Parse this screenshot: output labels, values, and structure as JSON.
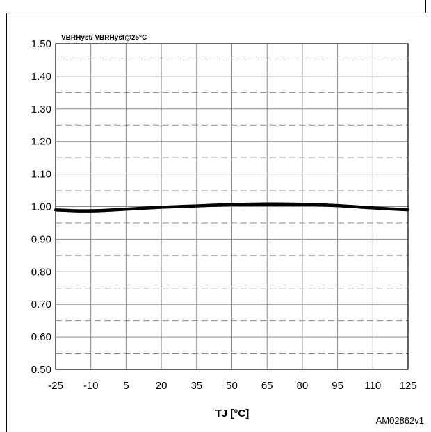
{
  "chart_data": {
    "type": "line",
    "title": "",
    "ylabel": "VBRHyst/ VBRHyst@25°C",
    "xlabel": "TJ [°C]",
    "figure_id": "AM02862v1",
    "x_ticks": [
      "-25",
      "-10",
      "5",
      "20",
      "35",
      "50",
      "65",
      "80",
      "95",
      "110",
      "125"
    ],
    "y_ticks": [
      "0.50",
      "0.60",
      "0.70",
      "0.80",
      "0.90",
      "1.00",
      "1.10",
      "1.20",
      "1.30",
      "1.40",
      "1.50"
    ],
    "xlim": [
      -25,
      125
    ],
    "ylim": [
      0.5,
      1.5
    ],
    "grid": true,
    "minor_grid_dashed": true,
    "series": [
      {
        "color": "#000000",
        "x": [
          -25,
          -15,
          -5,
          5,
          20,
          35,
          50,
          65,
          80,
          95,
          110,
          125
        ],
        "y": [
          0.99,
          0.987,
          0.988,
          0.992,
          0.998,
          1.002,
          1.006,
          1.008,
          1.007,
          1.003,
          0.996,
          0.99
        ]
      }
    ]
  }
}
